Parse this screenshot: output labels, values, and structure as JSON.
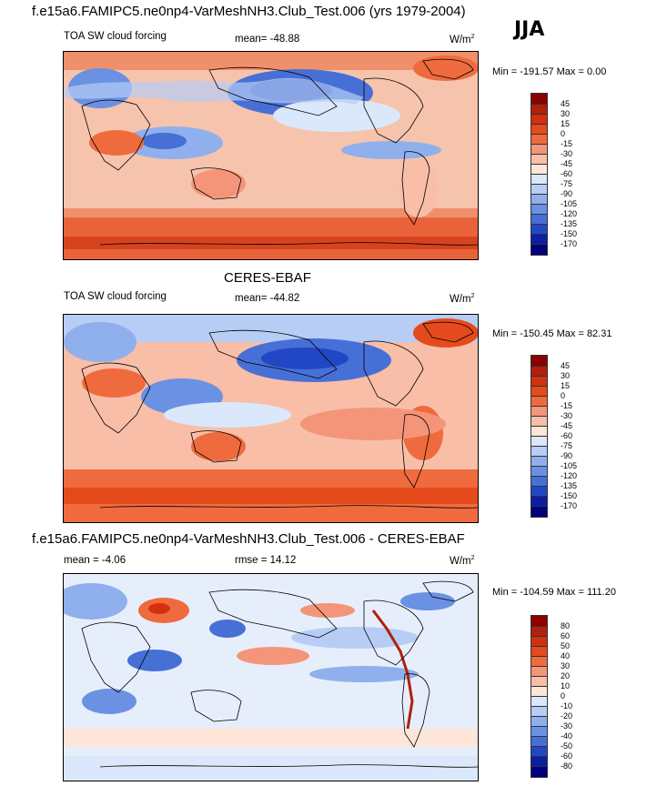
{
  "header": {
    "title": "f.e15a6.FAMIPC5.ne0np4-VarMeshNH3.Club_Test.006 (yrs 1979-2004)",
    "season": "JJA"
  },
  "panel1": {
    "left": "TOA SW cloud forcing",
    "center": "mean= -48.88",
    "units": "W/m",
    "units_sup": "2",
    "minmax": "Min = -191.57 Max =   0.00",
    "levels": [
      "45",
      "30",
      "15",
      "0",
      "-15",
      "-30",
      "-45",
      "-60",
      "-75",
      "-90",
      "-105",
      "-120",
      "-135",
      "-150",
      "-170"
    ]
  },
  "panel2": {
    "heading": "CERES-EBAF",
    "left": "TOA SW cloud forcing",
    "center": "mean= -44.82",
    "units": "W/m",
    "units_sup": "2",
    "minmax": "Min = -150.45 Max =  82.31",
    "levels": [
      "45",
      "30",
      "15",
      "0",
      "-15",
      "-30",
      "-45",
      "-60",
      "-75",
      "-90",
      "-105",
      "-120",
      "-135",
      "-150",
      "-170"
    ]
  },
  "panel3": {
    "heading": "f.e15a6.FAMIPC5.ne0np4-VarMeshNH3.Club_Test.006 - CERES-EBAF",
    "left": "mean =  -4.06",
    "center": "rmse =  14.12",
    "units": "W/m",
    "units_sup": "2",
    "minmax": "Min = -104.59 Max = 111.20",
    "levels": [
      "80",
      "60",
      "50",
      "40",
      "30",
      "20",
      "10",
      "0",
      "-10",
      "-20",
      "-30",
      "-40",
      "-50",
      "-60",
      "-80"
    ]
  },
  "colors": {
    "scale": [
      "#8b0000",
      "#b0200c",
      "#d2300f",
      "#e54a1c",
      "#ef6b3e",
      "#f4957a",
      "#f8bea8",
      "#fde6d8",
      "#dbe8fb",
      "#b7cdf5",
      "#8fb0ec",
      "#6a91e2",
      "#4670d6",
      "#2247c4",
      "#0a1ea6",
      "#00007e"
    ],
    "ocean_light": "#f6c4ac",
    "ocean_mid": "#f0906a",
    "south_band": "#e8633a",
    "land": "#f7cbb4",
    "cloud_blue": "#3d6bd8",
    "deep_blue": "#1a3cc0",
    "light_blue": "#c8d8f6",
    "diff_bg": "#e7eefb"
  }
}
